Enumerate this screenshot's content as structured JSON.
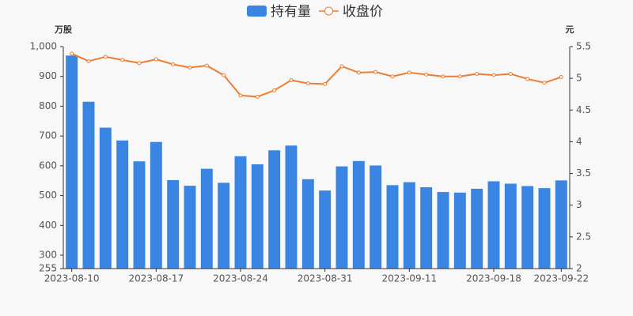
{
  "chart_data": {
    "type": "bar-line",
    "y_label": "万股",
    "y2_label": "元",
    "categories": [
      "2023-08-10",
      null,
      null,
      null,
      null,
      "2023-08-17",
      null,
      null,
      null,
      null,
      "2023-08-24",
      null,
      null,
      null,
      null,
      "2023-08-31",
      null,
      null,
      null,
      null,
      "2023-09-11",
      null,
      null,
      null,
      null,
      "2023-09-18",
      null,
      null,
      null,
      "2023-09-22"
    ],
    "series": [
      {
        "name": "持有量",
        "type": "bar",
        "color": "#3a84e2",
        "values": [
          970,
          815,
          728,
          685,
          615,
          680,
          552,
          533,
          590,
          543,
          632,
          605,
          652,
          668,
          555,
          517,
          598,
          616,
          601,
          535,
          545,
          528,
          512,
          510,
          523,
          548,
          540,
          532,
          525,
          551
        ]
      },
      {
        "name": "收盘价",
        "type": "line",
        "axis": "y2",
        "color": "#ed7d31",
        "values": [
          5.39,
          5.27,
          5.34,
          5.29,
          5.24,
          5.3,
          5.22,
          5.17,
          5.2,
          5.05,
          4.73,
          4.71,
          4.81,
          4.97,
          4.92,
          4.91,
          5.19,
          5.09,
          5.1,
          5.03,
          5.09,
          5.06,
          5.03,
          5.03,
          5.07,
          5.05,
          5.07,
          4.99,
          4.93,
          5.02
        ]
      }
    ],
    "ylim": [
      255,
      1000
    ],
    "yticks": [
      255,
      300,
      400,
      500,
      600,
      700,
      800,
      900,
      {
        "value": 1000,
        "label": "1,000"
      }
    ],
    "y2lim": [
      2,
      5.5
    ],
    "y2ticks": [
      2,
      2.5,
      3,
      3.5,
      4,
      4.5,
      5,
      5.5
    ]
  }
}
